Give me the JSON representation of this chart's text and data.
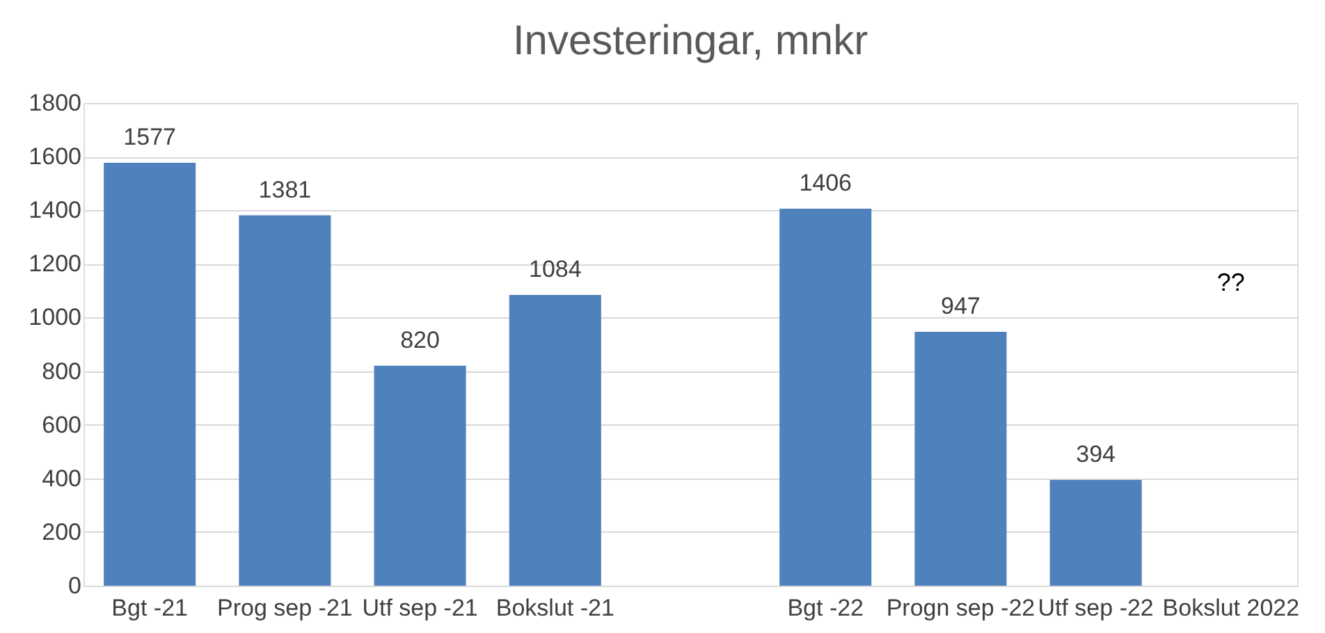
{
  "chart_data": {
    "type": "bar",
    "title": "Investeringar, mnkr",
    "categories": [
      "Bgt -21",
      "Prog sep -21",
      "Utf sep -21",
      "Bokslut -21",
      null,
      "Bgt -22",
      "Progn sep -22",
      "Utf sep -22",
      "Bokslut 2022"
    ],
    "values": [
      1577,
      1381,
      820,
      1084,
      null,
      1406,
      947,
      394,
      null
    ],
    "color": "#4f81bd",
    "data_labels": true,
    "ylim": [
      0,
      1800
    ],
    "yticks": [
      0,
      200,
      400,
      600,
      800,
      1000,
      1200,
      1400,
      1600,
      1800
    ],
    "grid": "y",
    "annotations": [
      "??"
    ]
  }
}
